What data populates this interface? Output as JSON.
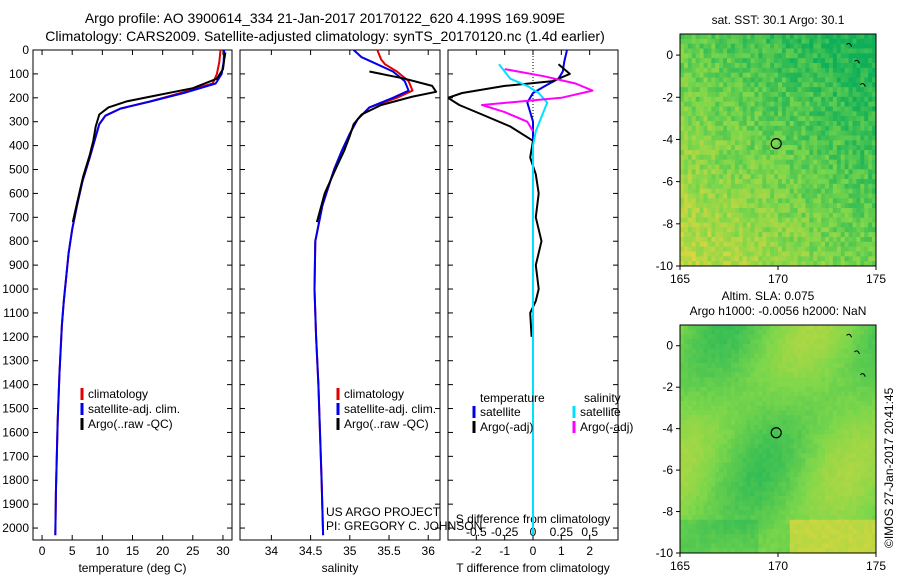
{
  "header": {
    "title_line1": "Argo profile: AO 3900614_334 21-Jan-2017 20170122_620 4.199S 169.909E",
    "title_line2": "Climatology: CARS2009. Satellite-adjusted climatology: synTS_20170120.nc (1.4d earlier)"
  },
  "credits": {
    "line1": "US ARGO PROJECT",
    "line2": "PI: GREGORY C. JOHNSON",
    "side_stamp": "©IMOS 27-Jan-2017 20:41:45"
  },
  "colors": {
    "climatology": "#e00000",
    "satellite": "#0000ee",
    "argo": "#000000",
    "salinity_satellite": "#00e0ff",
    "salinity_argo": "#ff00ff"
  },
  "chart_data": [
    {
      "type": "line",
      "id": "temperature",
      "xlabel": "temperature (deg C)",
      "ylim": [
        2050,
        0
      ],
      "xlim": [
        -1.5,
        31.5
      ],
      "xticks": [
        0,
        5,
        10,
        15,
        20,
        25,
        30
      ],
      "yticks": [
        0,
        100,
        200,
        300,
        400,
        500,
        600,
        700,
        800,
        900,
        1000,
        1100,
        1200,
        1300,
        1400,
        1500,
        1600,
        1700,
        1800,
        1900,
        2000
      ],
      "legend": [
        "climatology",
        "satellite-adj. clim.",
        "Argo(..raw -QC)"
      ],
      "series": [
        {
          "name": "climatology",
          "color": "#e00000",
          "points": [
            [
              29.6,
              0
            ],
            [
              29.4,
              50
            ],
            [
              29.0,
              100
            ],
            [
              28.3,
              140
            ],
            [
              23,
              180
            ],
            [
              18,
              215
            ],
            [
              13,
              245
            ],
            [
              10.5,
              275
            ],
            [
              9.5,
              310
            ],
            [
              8.7,
              380
            ],
            [
              7.9,
              450
            ],
            [
              6.7,
              550
            ],
            [
              5.8,
              650
            ],
            [
              5.0,
              750
            ],
            [
              4.4,
              850
            ],
            [
              4.0,
              950
            ],
            [
              3.6,
              1050
            ],
            [
              3.3,
              1150
            ],
            [
              3.1,
              1250
            ],
            [
              2.9,
              1350
            ],
            [
              2.75,
              1450
            ],
            [
              2.6,
              1550
            ],
            [
              2.5,
              1650
            ],
            [
              2.4,
              1750
            ],
            [
              2.3,
              1850
            ],
            [
              2.25,
              1950
            ],
            [
              2.2,
              2030
            ]
          ]
        },
        {
          "name": "satellite-adj. clim.",
          "color": "#0000ee",
          "points": [
            [
              30.2,
              0
            ],
            [
              30.1,
              50
            ],
            [
              29.8,
              100
            ],
            [
              28.8,
              140
            ],
            [
              23.5,
              180
            ],
            [
              18,
              215
            ],
            [
              13,
              245
            ],
            [
              10.5,
              275
            ],
            [
              9.5,
              310
            ],
            [
              8.7,
              380
            ],
            [
              7.9,
              450
            ],
            [
              6.7,
              550
            ],
            [
              5.8,
              650
            ],
            [
              5.0,
              750
            ],
            [
              4.4,
              850
            ],
            [
              4.0,
              950
            ],
            [
              3.6,
              1050
            ],
            [
              3.3,
              1150
            ],
            [
              3.1,
              1250
            ],
            [
              2.9,
              1350
            ],
            [
              2.75,
              1450
            ],
            [
              2.6,
              1550
            ],
            [
              2.5,
              1650
            ],
            [
              2.4,
              1750
            ],
            [
              2.3,
              1850
            ],
            [
              2.25,
              1950
            ],
            [
              2.2,
              2030
            ]
          ]
        },
        {
          "name": "Argo(..raw -QC)",
          "color": "#000000",
          "points": [
            [
              30.4,
              10
            ],
            [
              30.2,
              40
            ],
            [
              30.0,
              80
            ],
            [
              29.0,
              120
            ],
            [
              25,
              160
            ],
            [
              19,
              190
            ],
            [
              14,
              215
            ],
            [
              11,
              240
            ],
            [
              9.5,
              270
            ],
            [
              8.9,
              320
            ],
            [
              8.5,
              380
            ],
            [
              7.9,
              440
            ],
            [
              6.8,
              530
            ],
            [
              5.9,
              630
            ],
            [
              5.1,
              720
            ]
          ]
        }
      ]
    },
    {
      "type": "line",
      "id": "salinity",
      "xlabel": "salinity",
      "ylim": [
        2050,
        0
      ],
      "xlim": [
        33.6,
        36.15
      ],
      "xticks": [
        34,
        34.5,
        35,
        35.5,
        36
      ],
      "legend": [
        "climatology",
        "satellite-adj. clim.",
        "Argo(..raw -QC)"
      ],
      "series": [
        {
          "name": "climatology",
          "color": "#e00000",
          "points": [
            [
              35.35,
              0
            ],
            [
              35.4,
              40
            ],
            [
              35.45,
              60
            ],
            [
              35.6,
              90
            ],
            [
              35.75,
              130
            ],
            [
              35.8,
              170
            ],
            [
              35.6,
              200
            ],
            [
              35.25,
              240
            ],
            [
              35.1,
              290
            ],
            [
              35.0,
              350
            ],
            [
              34.9,
              420
            ],
            [
              34.8,
              500
            ],
            [
              34.65,
              650
            ],
            [
              34.56,
              800
            ],
            [
              34.55,
              1000
            ],
            [
              34.57,
              1200
            ],
            [
              34.6,
              1400
            ],
            [
              34.62,
              1600
            ],
            [
              34.64,
              1800
            ],
            [
              34.66,
              2030
            ]
          ]
        },
        {
          "name": "satellite-adj. clim.",
          "color": "#0000ee",
          "points": [
            [
              35.05,
              0
            ],
            [
              35.15,
              30
            ],
            [
              35.35,
              60
            ],
            [
              35.55,
              90
            ],
            [
              35.7,
              130
            ],
            [
              35.75,
              170
            ],
            [
              35.55,
              200
            ],
            [
              35.25,
              240
            ],
            [
              35.1,
              290
            ],
            [
              35.0,
              350
            ],
            [
              34.9,
              420
            ],
            [
              34.8,
              500
            ],
            [
              34.65,
              650
            ],
            [
              34.56,
              800
            ],
            [
              34.55,
              1000
            ],
            [
              34.57,
              1200
            ],
            [
              34.6,
              1400
            ],
            [
              34.62,
              1600
            ],
            [
              34.64,
              1800
            ],
            [
              34.66,
              2030
            ]
          ]
        },
        {
          "name": "Argo(..raw -QC)",
          "color": "#000000",
          "points": [
            [
              35.25,
              90
            ],
            [
              35.7,
              120
            ],
            [
              36.05,
              150
            ],
            [
              36.1,
              175
            ],
            [
              35.8,
              195
            ],
            [
              35.4,
              230
            ],
            [
              35.15,
              270
            ],
            [
              35.05,
              310
            ],
            [
              35.0,
              360
            ],
            [
              34.93,
              420
            ],
            [
              34.83,
              490
            ],
            [
              34.68,
              600
            ],
            [
              34.58,
              720
            ]
          ]
        }
      ]
    },
    {
      "type": "line",
      "id": "difference",
      "xlabel": "T difference from climatology",
      "xlabel_top": "S difference from climatology",
      "ylim": [
        2050,
        0
      ],
      "xlim": [
        -3.0,
        3.0
      ],
      "xticks": [
        -2,
        -1,
        0,
        1,
        2
      ],
      "xticks_salinity": [
        "-0.5",
        "-0.25",
        "0",
        "0.25",
        "0.5"
      ],
      "legend_temperature": {
        "heading": "temperature",
        "items": [
          "satellite",
          "Argo(-adj)"
        ]
      },
      "legend_salinity": {
        "heading": "salinity",
        "items": [
          "satellite",
          "Argo(-adj)"
        ]
      },
      "series": [
        {
          "name": "satellite",
          "group": "temperature",
          "color": "#0000ee",
          "points": [
            [
              1.2,
              0
            ],
            [
              1.1,
              50
            ],
            [
              1.05,
              90
            ],
            [
              0.9,
              120
            ],
            [
              0.5,
              145
            ],
            [
              0.0,
              180
            ],
            [
              -0.2,
              220
            ],
            [
              -0.1,
              260
            ],
            [
              0.0,
              300
            ],
            [
              0.0,
              400
            ],
            [
              0.0,
              2030
            ]
          ]
        },
        {
          "name": "Argo(-adj)",
          "group": "temperature",
          "color": "#000000",
          "points": [
            [
              0.9,
              60
            ],
            [
              1.3,
              100
            ],
            [
              0.7,
              130
            ],
            [
              -1.0,
              150
            ],
            [
              -2.5,
              180
            ],
            [
              -3.0,
              200
            ],
            [
              -2.6,
              230
            ],
            [
              -1.8,
              270
            ],
            [
              -0.8,
              320
            ],
            [
              0.0,
              380
            ],
            [
              -0.1,
              450
            ],
            [
              0.1,
              520
            ],
            [
              0.2,
              600
            ],
            [
              0.1,
              700
            ],
            [
              0.3,
              800
            ],
            [
              0.1,
              900
            ],
            [
              0.2,
              1000
            ],
            [
              0.1,
              1050
            ],
            [
              -0.1,
              1100
            ],
            [
              -0.05,
              1200
            ]
          ]
        },
        {
          "name": "satellite",
          "group": "salinity",
          "color": "#00e0ff",
          "points": [
            [
              -1.2,
              60
            ],
            [
              -0.8,
              120
            ],
            [
              -0.2,
              150
            ],
            [
              0.2,
              180
            ],
            [
              0.5,
              220
            ],
            [
              0.3,
              280
            ],
            [
              0.1,
              340
            ],
            [
              0.0,
              400
            ],
            [
              0.0,
              2030
            ]
          ]
        },
        {
          "name": "Argo(-adj)",
          "group": "salinity",
          "color": "#ff00ff",
          "points": [
            [
              -1.0,
              80
            ],
            [
              0.4,
              110
            ],
            [
              1.5,
              140
            ],
            [
              2.1,
              170
            ],
            [
              1.0,
              200
            ],
            [
              -1.8,
              230
            ],
            [
              -1.0,
              260
            ],
            [
              -0.2,
              300
            ],
            [
              0.0,
              340
            ]
          ]
        }
      ]
    },
    {
      "type": "heatmap",
      "id": "sst_map",
      "title": "sat. SST: 30.1  Argo: 30.1",
      "xlim": [
        165,
        175
      ],
      "ylim": [
        -10,
        1
      ],
      "xticks": [
        165,
        170,
        175
      ],
      "yticks": [
        0,
        -2,
        -4,
        -6,
        -8,
        -10
      ],
      "argo_position": [
        169.909,
        -4.199
      ]
    },
    {
      "type": "heatmap",
      "id": "sla_map",
      "title_line1": "Altim. SLA: 0.075",
      "title_line2": "Argo h1000: -0.0056 h2000: NaN",
      "xlim": [
        165,
        175
      ],
      "ylim": [
        -10,
        1
      ],
      "xticks": [
        165,
        170,
        175
      ],
      "yticks": [
        0,
        -2,
        -4,
        -6,
        -8,
        -10
      ],
      "argo_position": [
        169.909,
        -4.199
      ]
    }
  ]
}
